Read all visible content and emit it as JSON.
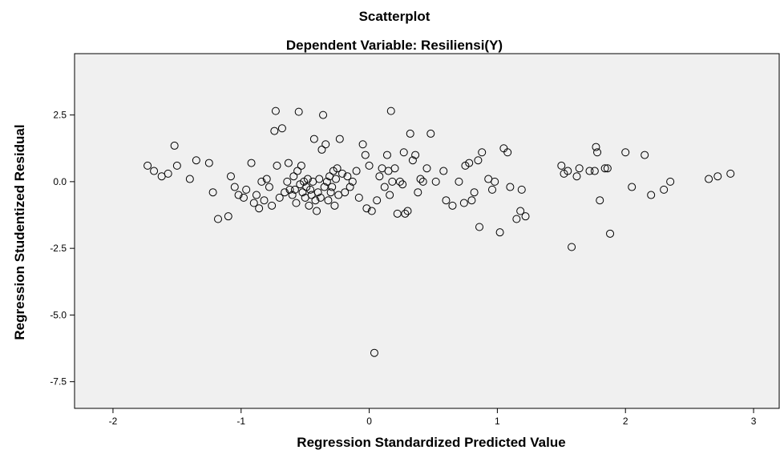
{
  "chart_data": {
    "type": "scatter",
    "title": "Scatterplot",
    "subtitle": "Dependent Variable: Resiliensi(Y)",
    "xlabel": "Regression Standardized Predicted Value",
    "ylabel": "Regression Studentized Residual",
    "xlim": [
      -2.3,
      3.2
    ],
    "ylim": [
      -8.5,
      4.8
    ],
    "xticks": [
      -2,
      -1,
      0,
      1,
      2,
      3
    ],
    "xtick_labels": [
      "-2",
      "-1",
      "0",
      "1",
      "2",
      "3"
    ],
    "yticks": [
      2.5,
      0.0,
      -2.5,
      -5.0,
      -7.5
    ],
    "ytick_labels": [
      "2.5",
      "0.0",
      "-2.5",
      "-5.0",
      "-7.5"
    ],
    "grid": false,
    "marker": "open-circle",
    "colors": {
      "plot_background": "#f0f0f0",
      "marker": "#000000"
    },
    "points": [
      [
        -1.73,
        0.6
      ],
      [
        -1.68,
        0.4
      ],
      [
        -1.62,
        0.2
      ],
      [
        -1.57,
        0.3
      ],
      [
        -1.52,
        1.35
      ],
      [
        -1.5,
        0.6
      ],
      [
        -1.4,
        0.1
      ],
      [
        -1.35,
        0.8
      ],
      [
        -1.25,
        0.7
      ],
      [
        -1.22,
        -0.4
      ],
      [
        -1.18,
        -1.4
      ],
      [
        -1.1,
        -1.3
      ],
      [
        -1.08,
        0.2
      ],
      [
        -1.05,
        -0.2
      ],
      [
        -1.02,
        -0.5
      ],
      [
        -0.98,
        -0.6
      ],
      [
        -0.96,
        -0.3
      ],
      [
        -0.92,
        0.7
      ],
      [
        -0.9,
        -0.8
      ],
      [
        -0.88,
        -0.5
      ],
      [
        -0.86,
        -1.0
      ],
      [
        -0.84,
        0.0
      ],
      [
        -0.82,
        -0.7
      ],
      [
        -0.8,
        0.1
      ],
      [
        -0.78,
        -0.2
      ],
      [
        -0.76,
        -0.9
      ],
      [
        -0.74,
        1.9
      ],
      [
        -0.73,
        2.65
      ],
      [
        -0.72,
        0.6
      ],
      [
        -0.7,
        -0.6
      ],
      [
        -0.68,
        2.0
      ],
      [
        -0.66,
        -0.4
      ],
      [
        -0.64,
        0.0
      ],
      [
        -0.63,
        0.7
      ],
      [
        -0.62,
        -0.3
      ],
      [
        -0.6,
        -0.5
      ],
      [
        -0.59,
        0.2
      ],
      [
        -0.58,
        -0.3
      ],
      [
        -0.57,
        -0.8
      ],
      [
        -0.56,
        0.4
      ],
      [
        -0.55,
        2.62
      ],
      [
        -0.54,
        -0.1
      ],
      [
        -0.53,
        0.6
      ],
      [
        -0.52,
        -0.4
      ],
      [
        -0.51,
        0.0
      ],
      [
        -0.5,
        -0.6
      ],
      [
        -0.49,
        -0.2
      ],
      [
        -0.48,
        0.1
      ],
      [
        -0.47,
        -0.9
      ],
      [
        -0.46,
        -0.3
      ],
      [
        -0.45,
        -0.5
      ],
      [
        -0.44,
        0.0
      ],
      [
        -0.43,
        1.6
      ],
      [
        -0.42,
        -0.7
      ],
      [
        -0.41,
        -1.1
      ],
      [
        -0.4,
        -0.4
      ],
      [
        -0.39,
        0.1
      ],
      [
        -0.38,
        -0.6
      ],
      [
        -0.37,
        1.2
      ],
      [
        -0.36,
        2.5
      ],
      [
        -0.35,
        -0.2
      ],
      [
        -0.34,
        1.4
      ],
      [
        -0.33,
        0.0
      ],
      [
        -0.32,
        -0.7
      ],
      [
        -0.31,
        0.2
      ],
      [
        -0.3,
        -0.4
      ],
      [
        -0.29,
        -0.2
      ],
      [
        -0.28,
        0.4
      ],
      [
        -0.27,
        -0.9
      ],
      [
        -0.26,
        0.1
      ],
      [
        -0.25,
        0.5
      ],
      [
        -0.24,
        -0.5
      ],
      [
        -0.23,
        1.6
      ],
      [
        -0.21,
        0.3
      ],
      [
        -0.19,
        -0.4
      ],
      [
        -0.17,
        0.2
      ],
      [
        -0.15,
        -0.2
      ],
      [
        -0.13,
        0.0
      ],
      [
        -0.1,
        0.4
      ],
      [
        -0.08,
        -0.6
      ],
      [
        -0.05,
        1.4
      ],
      [
        -0.03,
        1.0
      ],
      [
        -0.02,
        -1.0
      ],
      [
        0.0,
        0.6
      ],
      [
        0.02,
        -1.1
      ],
      [
        0.04,
        -6.42
      ],
      [
        0.06,
        -0.7
      ],
      [
        0.08,
        0.2
      ],
      [
        0.1,
        0.5
      ],
      [
        0.12,
        -0.2
      ],
      [
        0.14,
        1.0
      ],
      [
        0.15,
        0.4
      ],
      [
        0.16,
        -0.5
      ],
      [
        0.17,
        2.65
      ],
      [
        0.18,
        0.0
      ],
      [
        0.2,
        0.5
      ],
      [
        0.22,
        -1.2
      ],
      [
        0.24,
        0.0
      ],
      [
        0.26,
        -0.1
      ],
      [
        0.27,
        1.1
      ],
      [
        0.28,
        -1.2
      ],
      [
        0.3,
        -1.1
      ],
      [
        0.32,
        1.8
      ],
      [
        0.34,
        0.8
      ],
      [
        0.36,
        1.0
      ],
      [
        0.38,
        -0.4
      ],
      [
        0.4,
        0.1
      ],
      [
        0.42,
        0.0
      ],
      [
        0.45,
        0.5
      ],
      [
        0.48,
        1.8
      ],
      [
        0.52,
        0.0
      ],
      [
        0.58,
        0.4
      ],
      [
        0.6,
        -0.7
      ],
      [
        0.65,
        -0.9
      ],
      [
        0.7,
        0.0
      ],
      [
        0.74,
        -0.8
      ],
      [
        0.75,
        0.6
      ],
      [
        0.78,
        0.7
      ],
      [
        0.8,
        -0.7
      ],
      [
        0.82,
        -0.4
      ],
      [
        0.85,
        0.8
      ],
      [
        0.86,
        -1.7
      ],
      [
        0.88,
        1.1
      ],
      [
        0.93,
        0.1
      ],
      [
        0.96,
        -0.3
      ],
      [
        0.98,
        0.0
      ],
      [
        1.02,
        -1.9
      ],
      [
        1.05,
        1.25
      ],
      [
        1.08,
        1.1
      ],
      [
        1.1,
        -0.2
      ],
      [
        1.15,
        -1.4
      ],
      [
        1.18,
        -1.1
      ],
      [
        1.19,
        -0.3
      ],
      [
        1.22,
        -1.3
      ],
      [
        1.5,
        0.6
      ],
      [
        1.52,
        0.3
      ],
      [
        1.55,
        0.4
      ],
      [
        1.58,
        -2.45
      ],
      [
        1.62,
        0.2
      ],
      [
        1.64,
        0.5
      ],
      [
        1.72,
        0.4
      ],
      [
        1.76,
        0.4
      ],
      [
        1.77,
        1.3
      ],
      [
        1.78,
        1.1
      ],
      [
        1.8,
        -0.7
      ],
      [
        1.84,
        0.5
      ],
      [
        1.86,
        0.5
      ],
      [
        1.88,
        -1.95
      ],
      [
        2.0,
        1.1
      ],
      [
        2.05,
        -0.2
      ],
      [
        2.15,
        1.0
      ],
      [
        2.2,
        -0.5
      ],
      [
        2.3,
        -0.3
      ],
      [
        2.35,
        0.0
      ],
      [
        2.65,
        0.1
      ],
      [
        2.72,
        0.2
      ],
      [
        2.82,
        0.3
      ]
    ]
  }
}
